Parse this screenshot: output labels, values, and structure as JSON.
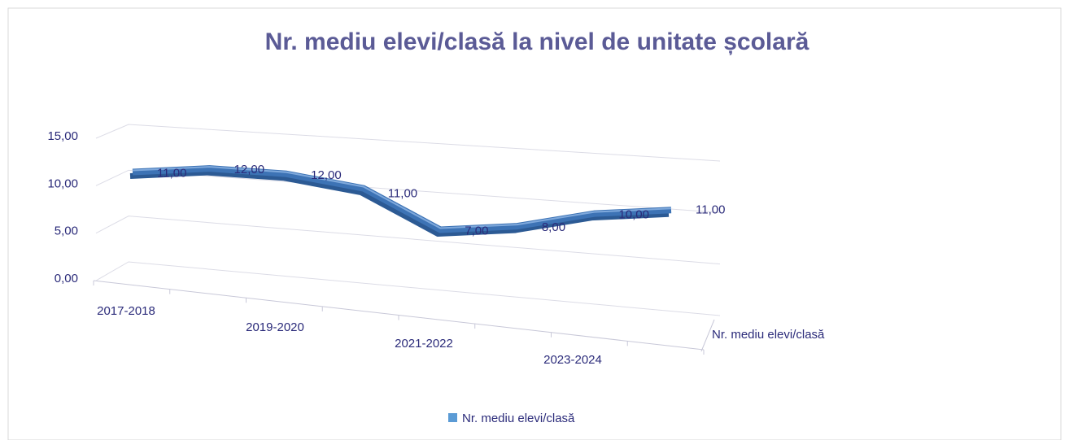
{
  "chart_data": {
    "type": "line3d",
    "title": "Nr. mediu elevi/clasă la nivel de unitate școlară",
    "categories": [
      "2017-2018",
      null,
      "2019-2020",
      null,
      "2021-2022",
      null,
      "2023-2024",
      null
    ],
    "series": [
      {
        "name": "Nr. mediu elevi/clasă",
        "color": "#3d73b5",
        "values": [
          11,
          12,
          12,
          11,
          7,
          8,
          10,
          11
        ],
        "value_labels": [
          "11,00",
          "12,00",
          "12,00",
          "11,00",
          "7,00",
          "8,00",
          "10,00",
          "11,00"
        ]
      }
    ],
    "ylim": [
      0,
      15
    ],
    "yticks": [
      {
        "value": 0,
        "label": "0,00"
      },
      {
        "value": 5,
        "label": "5,00"
      },
      {
        "value": 10,
        "label": "10,00"
      },
      {
        "value": 15,
        "label": "15,00"
      }
    ],
    "grid": true,
    "legend": "bottom"
  }
}
